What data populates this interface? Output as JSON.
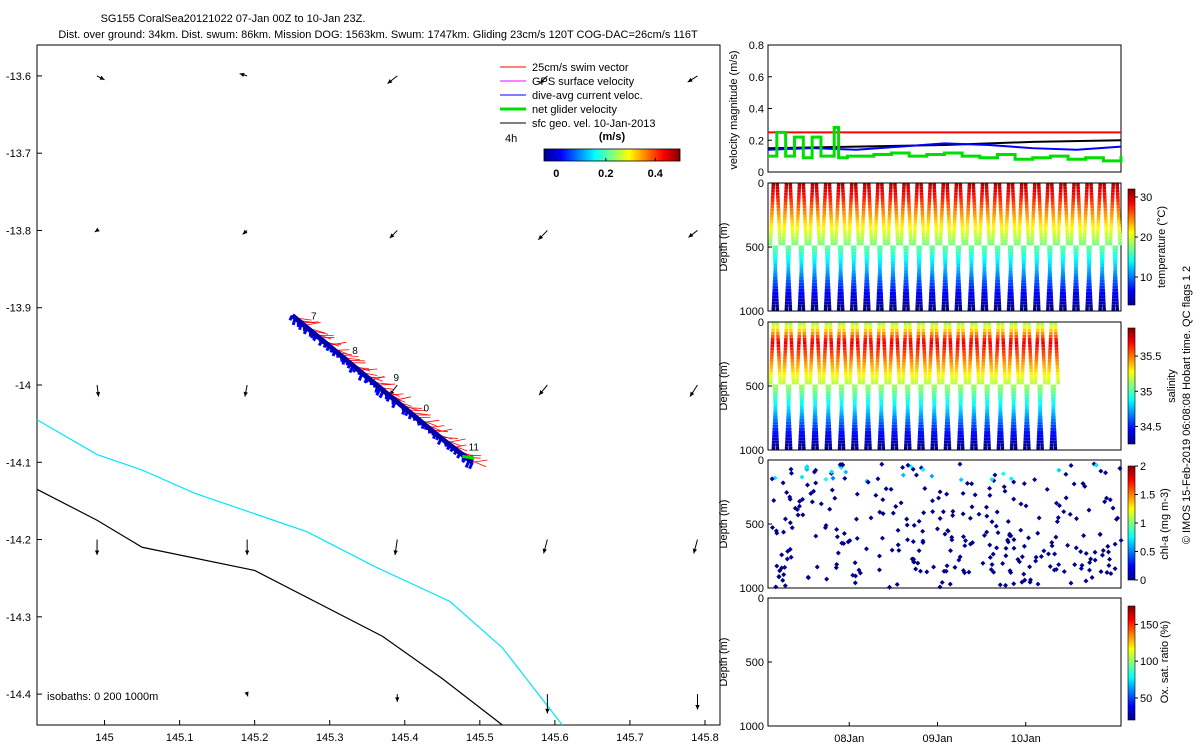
{
  "title": {
    "line1": "SG155 CoralSea20121022 07-Jan 00Z to 10-Jan 23Z.",
    "line2": "Dist. over ground: 34km. Dist. swum: 86km. Mission DOG: 1563km. Swum: 1747km. Gliding 23cm/s 120T COG-DAC=26cm/s 116T"
  },
  "copyright": "© IMOS 15-Feb-2019 06:08:08 Hobart time. QC flags 1  2",
  "chart_data": [
    {
      "type": "scatter",
      "name": "track-map",
      "xlim": [
        144.91,
        145.82
      ],
      "ylim": [
        -14.44,
        -13.56
      ],
      "xticks": [
        145,
        145.1,
        145.2,
        145.3,
        145.4,
        145.5,
        145.6,
        145.7,
        145.8
      ],
      "yticks": [
        -13.6,
        -13.7,
        -13.8,
        -13.9,
        -14,
        -14.1,
        -14.2,
        -14.3,
        -14.4
      ],
      "xticklabels": [
        "145",
        "145.1",
        "145.2",
        "145.3",
        "145.4",
        "145.5",
        "145.6",
        "145.7",
        "145.8"
      ],
      "yticklabels": [
        "-13.6",
        "-13.7",
        "-13.8",
        "-13.9",
        "-14",
        "-14.1",
        "-14.2",
        "-14.3",
        "-14.4"
      ],
      "legend": [
        {
          "label": "25cm/s swim vector",
          "color": "#ff0000"
        },
        {
          "label": "GPS surface velocity",
          "color": "#ff00ff"
        },
        {
          "label": "dive-avg current veloc.",
          "color": "#0000ff"
        },
        {
          "label": "net glider velocity",
          "color": "#00dd00"
        },
        {
          "label": "sfc geo. vel. 10-Jan-2013",
          "color": "#000000"
        }
      ],
      "legend_extra": "4h",
      "colorbar": {
        "label": "(m/s)",
        "ticks": [
          0,
          0.2,
          0.4
        ],
        "ticklabels": [
          "0",
          "0.2",
          "0.4"
        ],
        "range": [
          -0.05,
          0.5
        ]
      },
      "isobath_label": "isobaths: 0   200  1000m",
      "isobaths": [
        {
          "depth": 200,
          "color": "#00e5ff",
          "x": [
            144.91,
            144.99,
            145.05,
            145.12,
            145.27,
            145.36,
            145.46,
            145.53,
            145.61
          ],
          "y": [
            -14.045,
            -14.09,
            -14.11,
            -14.14,
            -14.19,
            -14.235,
            -14.28,
            -14.34,
            -14.44
          ]
        },
        {
          "depth": 1000,
          "color": "#000000",
          "x": [
            144.91,
            144.99,
            145.05,
            145.2,
            145.37,
            145.45,
            145.53
          ],
          "y": [
            -14.135,
            -14.175,
            -14.21,
            -14.24,
            -14.325,
            -14.38,
            -14.44
          ]
        }
      ],
      "track": {
        "x": [
          145.25,
          145.3,
          145.35,
          145.4,
          145.45,
          145.49
        ],
        "y": [
          -13.91,
          -13.95,
          -13.99,
          -14.03,
          -14.07,
          -14.1
        ]
      },
      "day_labels": [
        {
          "text": "7",
          "x": 145.275,
          "y": -13.915
        },
        {
          "text": "8",
          "x": 145.33,
          "y": -13.96
        },
        {
          "text": "9",
          "x": 145.385,
          "y": -13.995
        },
        {
          "text": "0",
          "x": 145.425,
          "y": -14.034
        },
        {
          "text": "11",
          "x": 145.485,
          "y": -14.085
        }
      ],
      "current_vectors": [
        {
          "x": 144.99,
          "y": -13.6,
          "u": 0.01,
          "v": -0.005
        },
        {
          "x": 145.19,
          "y": -13.6,
          "u": -0.01,
          "v": 0.003
        },
        {
          "x": 145.39,
          "y": -13.6,
          "u": -0.013,
          "v": -0.01
        },
        {
          "x": 145.59,
          "y": -13.6,
          "u": -0.01,
          "v": -0.01
        },
        {
          "x": 145.79,
          "y": -13.6,
          "u": -0.013,
          "v": -0.008
        },
        {
          "x": 144.99,
          "y": -13.8,
          "u": -0.003,
          "v": -0.002
        },
        {
          "x": 145.19,
          "y": -13.8,
          "u": -0.006,
          "v": -0.005
        },
        {
          "x": 145.39,
          "y": -13.8,
          "u": -0.01,
          "v": -0.01
        },
        {
          "x": 145.59,
          "y": -13.8,
          "u": -0.012,
          "v": -0.012
        },
        {
          "x": 145.79,
          "y": -13.8,
          "u": -0.012,
          "v": -0.009
        },
        {
          "x": 144.99,
          "y": -14.0,
          "u": 0.002,
          "v": -0.015
        },
        {
          "x": 145.19,
          "y": -14.0,
          "u": -0.003,
          "v": -0.015
        },
        {
          "x": 145.39,
          "y": -14.0,
          "u": -0.01,
          "v": -0.013
        },
        {
          "x": 145.59,
          "y": -14.0,
          "u": -0.011,
          "v": -0.013
        },
        {
          "x": 145.79,
          "y": -14.0,
          "u": -0.01,
          "v": -0.015
        },
        {
          "x": 144.99,
          "y": -14.2,
          "u": 0,
          "v": -0.02
        },
        {
          "x": 145.19,
          "y": -14.2,
          "u": 0,
          "v": -0.02
        },
        {
          "x": 145.39,
          "y": -14.2,
          "u": -0.003,
          "v": -0.02
        },
        {
          "x": 145.59,
          "y": -14.2,
          "u": -0.005,
          "v": -0.018
        },
        {
          "x": 145.79,
          "y": -14.2,
          "u": -0.005,
          "v": -0.018
        },
        {
          "x": 145.19,
          "y": -14.4,
          "u": 0.001,
          "v": -0.003
        },
        {
          "x": 145.39,
          "y": -14.4,
          "u": 0,
          "v": -0.01
        },
        {
          "x": 145.59,
          "y": -14.4,
          "u": 0,
          "v": -0.025
        },
        {
          "x": 145.79,
          "y": -14.4,
          "u": 0,
          "v": -0.02
        }
      ]
    },
    {
      "type": "line",
      "name": "velocity-magnitude",
      "ylabel": "velocity magnitude (m/s)",
      "ylim": [
        0,
        0.8
      ],
      "yticks": [
        0,
        0.2,
        0.4,
        0.6,
        0.8
      ],
      "yticklabels": [
        "0",
        "0.2",
        "0.4",
        "0.6",
        "0.8"
      ],
      "xlim": [
        0,
        4
      ],
      "series": [
        {
          "color": "#ff0000",
          "x": [
            0,
            4
          ],
          "y": [
            0.25,
            0.25
          ]
        },
        {
          "color": "#000000",
          "x": [
            0,
            1,
            2,
            3,
            4
          ],
          "y": [
            0.15,
            0.16,
            0.17,
            0.19,
            0.2
          ]
        },
        {
          "color": "#0000ff",
          "x": [
            0,
            0.5,
            1,
            1.5,
            2,
            2.5,
            3,
            3.5,
            4
          ],
          "y": [
            0.14,
            0.15,
            0.14,
            0.16,
            0.18,
            0.17,
            0.15,
            0.14,
            0.16
          ]
        },
        {
          "color": "#00dd00",
          "x": [
            0,
            0.1,
            0.2,
            0.3,
            0.4,
            0.5,
            0.6,
            0.75,
            0.8,
            0.9,
            1.2,
            1.4,
            1.6,
            1.8,
            2.0,
            2.2,
            2.4,
            2.6,
            2.8,
            3.0,
            3.2,
            3.4,
            3.6,
            3.8,
            4.0
          ],
          "y": [
            0.1,
            0.25,
            0.1,
            0.22,
            0.09,
            0.22,
            0.1,
            0.28,
            0.09,
            0.1,
            0.11,
            0.12,
            0.1,
            0.11,
            0.12,
            0.1,
            0.09,
            0.11,
            0.08,
            0.09,
            0.1,
            0.08,
            0.09,
            0.07,
            0.1
          ]
        }
      ]
    },
    {
      "type": "scatter",
      "name": "temperature-section",
      "ylabel": "Depth (m)",
      "ylim": [
        1000,
        0
      ],
      "yticks": [
        0,
        500,
        1000
      ],
      "yticklabels": [
        "0",
        "500",
        "1000"
      ],
      "colorbar": {
        "label": "temperature (°C)",
        "ticks": [
          10,
          20,
          30
        ],
        "ticklabels": [
          "10",
          "20",
          "30"
        ],
        "range": [
          3,
          32
        ]
      },
      "profiles": 27,
      "xlim": [
        0,
        4
      ],
      "max_depth": 1000
    },
    {
      "type": "scatter",
      "name": "salinity-section",
      "ylabel": "Depth (m)",
      "ylim": [
        1000,
        0
      ],
      "yticks": [
        0,
        500,
        1000
      ],
      "yticklabels": [
        "0",
        "500",
        "1000"
      ],
      "colorbar": {
        "label": "salinity",
        "ticks": [
          34.5,
          35,
          35.5
        ],
        "ticklabels": [
          "34.5",
          "35",
          "35.5"
        ],
        "range": [
          34.25,
          35.9
        ]
      },
      "profiles": 22,
      "xlim": [
        0,
        3.3
      ],
      "max_depth": 1000
    },
    {
      "type": "scatter",
      "name": "chlorophyll-section",
      "ylabel": "Depth (m)",
      "ylim": [
        1000,
        0
      ],
      "yticks": [
        0,
        500,
        1000
      ],
      "yticklabels": [
        "0",
        "500",
        "1000"
      ],
      "colorbar": {
        "label": "chl-a (mg m-3)",
        "ticks": [
          0,
          0.5,
          1,
          1.5,
          2
        ],
        "ticklabels": [
          "0",
          "0.5",
          "1",
          "1.5",
          "2"
        ],
        "range": [
          0,
          2
        ]
      },
      "xlim": [
        0,
        4
      ],
      "max_depth": 1000
    },
    {
      "type": "scatter",
      "name": "oxygen-section",
      "ylabel": "Depth (m)",
      "ylim": [
        1000,
        0
      ],
      "yticks": [
        0,
        500,
        1000
      ],
      "yticklabels": [
        "0",
        "500",
        "1000"
      ],
      "colorbar": {
        "label": "Ox. sat. ratio (%)",
        "ticks": [
          50,
          100,
          150
        ],
        "ticklabels": [
          "50",
          "100",
          "150"
        ],
        "range": [
          20,
          175
        ]
      },
      "xticks": [
        1,
        2,
        3
      ],
      "xticklabels": [
        "08Jan",
        "09Jan",
        "10Jan"
      ],
      "xlim": [
        0,
        4
      ]
    }
  ]
}
